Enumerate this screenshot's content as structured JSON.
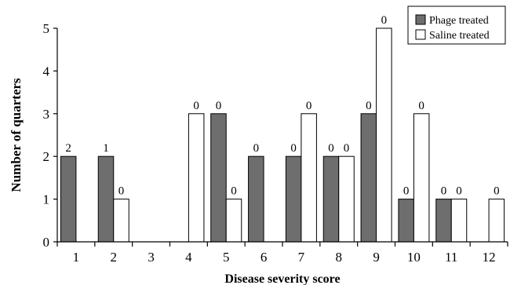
{
  "chart_data": {
    "type": "bar",
    "title": "",
    "xlabel": "Disease severity score",
    "ylabel": "Number of quarters",
    "categories": [
      "1",
      "2",
      "3",
      "4",
      "5",
      "6",
      "7",
      "8",
      "9",
      "10",
      "11",
      "12"
    ],
    "ylim": [
      0,
      5
    ],
    "yticks": [
      "0",
      "1",
      "2",
      "3",
      "4",
      "5"
    ],
    "grid": false,
    "legend_position": "top-right",
    "series": [
      {
        "name": "Phage treated",
        "color": "#6e6e6e",
        "values": [
          2,
          2,
          0,
          0,
          3,
          2,
          2,
          2,
          3,
          1,
          1,
          0
        ],
        "annotations": [
          "2",
          "1",
          "",
          "",
          "0",
          "0",
          "0",
          "0",
          "0",
          "0",
          "0",
          ""
        ]
      },
      {
        "name": "Saline treated",
        "color": "#ffffff",
        "values": [
          0,
          1,
          0,
          3,
          1,
          0,
          3,
          2,
          5,
          3,
          1,
          1
        ],
        "annotations": [
          "",
          "0",
          "",
          "0",
          "0",
          "",
          "0",
          "0",
          "0",
          "0",
          "0",
          "0"
        ]
      }
    ]
  }
}
